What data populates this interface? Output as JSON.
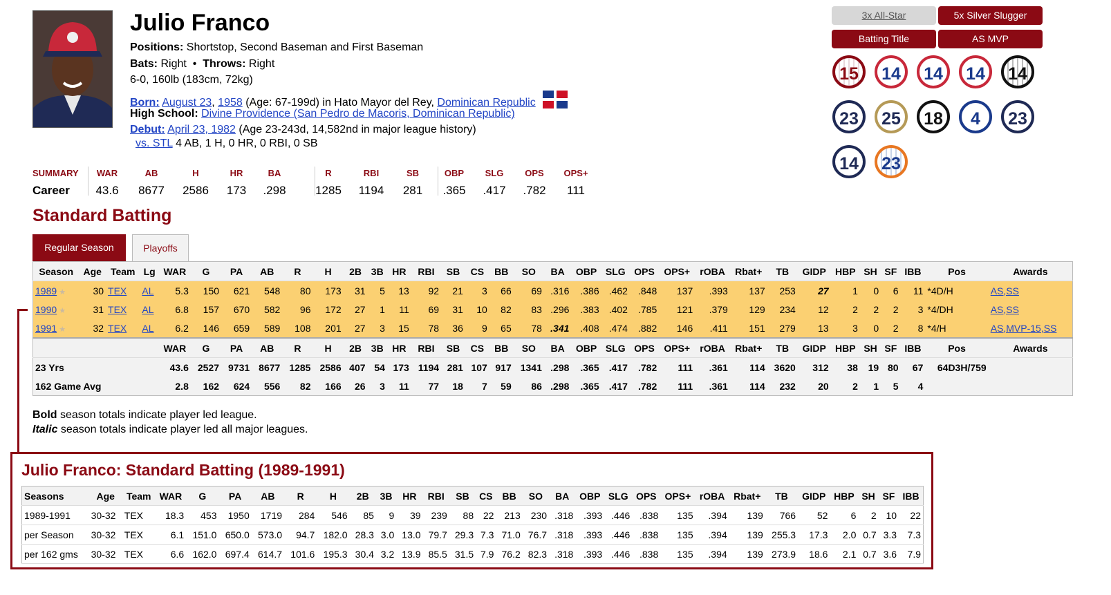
{
  "player": {
    "name": "Julio Franco",
    "positions_label": "Positions:",
    "positions": "Shortstop, Second Baseman and First Baseman",
    "bats_label": "Bats:",
    "bats": "Right",
    "throws_label": "Throws:",
    "throws": "Right",
    "size": "6-0, 160lb (183cm, 72kg)",
    "born_label": "Born:",
    "born_date": "August 23",
    "born_year": "1958",
    "born_age": "(Age: 67-199d) in Hato Mayor del Rey,",
    "born_country": "Dominican Republic",
    "hs_label": "High School:",
    "hs": "Divine Providence (San Pedro de Macoris, Dominican Republic)",
    "debut_label": "Debut:",
    "debut_date": "April 23, 1982",
    "debut_age": "(Age 23-243d, 14,582nd in major league history)",
    "debut_vs": "vs. STL",
    "debut_line": "4 AB, 1 H, 0 HR, 0 RBI, 0 SB"
  },
  "summary": {
    "label": "SUMMARY",
    "row_label": "Career",
    "cols": [
      {
        "h": "WAR",
        "v": "43.6"
      },
      {
        "h": "AB",
        "v": "8677"
      },
      {
        "h": "H",
        "v": "2586"
      },
      {
        "h": "HR",
        "v": "173"
      },
      {
        "h": "BA",
        "v": ".298"
      },
      {
        "h": "R",
        "v": "1285"
      },
      {
        "h": "RBI",
        "v": "1194"
      },
      {
        "h": "SB",
        "v": "281"
      },
      {
        "h": "OBP",
        "v": ".365"
      },
      {
        "h": "SLG",
        "v": ".417"
      },
      {
        "h": "OPS",
        "v": ".782"
      },
      {
        "h": "OPS+",
        "v": "111"
      }
    ]
  },
  "awards": [
    "3x All-Star",
    "5x Silver Slugger",
    "Batting Title",
    "AS MVP"
  ],
  "uniform_numbers": [
    "15",
    "14",
    "14",
    "14",
    "14",
    "23",
    "25",
    "18",
    "4",
    "23",
    "14",
    "23"
  ],
  "section_title": "Standard Batting",
  "tabs": [
    "Regular Season",
    "Playoffs"
  ],
  "batting": {
    "headers": [
      "Season",
      "Age",
      "Team",
      "Lg",
      "WAR",
      "G",
      "PA",
      "AB",
      "R",
      "H",
      "2B",
      "3B",
      "HR",
      "RBI",
      "SB",
      "CS",
      "BB",
      "SO",
      "BA",
      "OBP",
      "SLG",
      "OPS",
      "OPS+",
      "rOBA",
      "Rbat+",
      "TB",
      "GIDP",
      "HBP",
      "SH",
      "SF",
      "IBB",
      "Pos",
      "Awards"
    ],
    "rows": [
      {
        "season": "1989",
        "age": "30",
        "team": "TEX",
        "lg": "AL",
        "stats": [
          "5.3",
          "150",
          "621",
          "548",
          "80",
          "173",
          "31",
          "5",
          "13",
          "92",
          "21",
          "3",
          "66",
          "69",
          ".316",
          ".386",
          ".462",
          ".848",
          "137",
          ".393",
          "137",
          "253",
          "27",
          "1",
          "0",
          "6",
          "11"
        ],
        "pos": "*4D/H",
        "awards": "AS,SS"
      },
      {
        "season": "1990",
        "age": "31",
        "team": "TEX",
        "lg": "AL",
        "stats": [
          "6.8",
          "157",
          "670",
          "582",
          "96",
          "172",
          "27",
          "1",
          "11",
          "69",
          "31",
          "10",
          "82",
          "83",
          ".296",
          ".383",
          ".402",
          ".785",
          "121",
          ".379",
          "129",
          "234",
          "12",
          "2",
          "2",
          "2",
          "3"
        ],
        "pos": "*4/DH",
        "awards": "AS,SS"
      },
      {
        "season": "1991",
        "age": "32",
        "team": "TEX",
        "lg": "AL",
        "stats": [
          "6.2",
          "146",
          "659",
          "589",
          "108",
          "201",
          "27",
          "3",
          "15",
          "78",
          "36",
          "9",
          "65",
          "78",
          ".341",
          ".408",
          ".474",
          ".882",
          "146",
          ".411",
          "151",
          "279",
          "13",
          "3",
          "0",
          "2",
          "8"
        ],
        "pos": "*4/H",
        "awards": "AS,MVP-15,SS"
      }
    ],
    "foot_headers": [
      "WAR",
      "G",
      "PA",
      "AB",
      "R",
      "H",
      "2B",
      "3B",
      "HR",
      "RBI",
      "SB",
      "CS",
      "BB",
      "SO",
      "BA",
      "OBP",
      "SLG",
      "OPS",
      "OPS+",
      "rOBA",
      "Rbat+",
      "TB",
      "GIDP",
      "HBP",
      "SH",
      "SF",
      "IBB",
      "Pos",
      "Awards"
    ],
    "totals": [
      {
        "label": "23 Yrs",
        "stats": [
          "43.6",
          "2527",
          "9731",
          "8677",
          "1285",
          "2586",
          "407",
          "54",
          "173",
          "1194",
          "281",
          "107",
          "917",
          "1341",
          ".298",
          ".365",
          ".417",
          ".782",
          "111",
          ".361",
          "114",
          "3620",
          "312",
          "38",
          "19",
          "80",
          "67"
        ],
        "pos": "64D3H/759"
      },
      {
        "label": "162 Game Avg",
        "stats": [
          "2.8",
          "162",
          "624",
          "556",
          "82",
          "166",
          "26",
          "3",
          "11",
          "77",
          "18",
          "7",
          "59",
          "86",
          ".298",
          ".365",
          ".417",
          ".782",
          "111",
          ".361",
          "114",
          "232",
          "20",
          "2",
          "1",
          "5",
          "4"
        ],
        "pos": ""
      }
    ]
  },
  "notes": {
    "bold_word": "Bold",
    "bold_rest": " season totals indicate player led league.",
    "italic_word": "Italic",
    "italic_rest": " season totals indicate player led all major leagues."
  },
  "popup": {
    "title": "Julio Franco: Standard Batting (1989-1991)",
    "headers": [
      "Seasons",
      "Age",
      "Team",
      "WAR",
      "G",
      "PA",
      "AB",
      "R",
      "H",
      "2B",
      "3B",
      "HR",
      "RBI",
      "SB",
      "CS",
      "BB",
      "SO",
      "BA",
      "OBP",
      "SLG",
      "OPS",
      "OPS+",
      "rOBA",
      "Rbat+",
      "TB",
      "GIDP",
      "HBP",
      "SH",
      "SF",
      "IBB"
    ],
    "rows": [
      [
        "1989-1991",
        "30-32",
        "TEX",
        "18.3",
        "453",
        "1950",
        "1719",
        "284",
        "546",
        "85",
        "9",
        "39",
        "239",
        "88",
        "22",
        "213",
        "230",
        ".318",
        ".393",
        ".446",
        ".838",
        "135",
        ".394",
        "139",
        "766",
        "52",
        "6",
        "2",
        "10",
        "22"
      ],
      [
        "per Season",
        "30-32",
        "TEX",
        "6.1",
        "151.0",
        "650.0",
        "573.0",
        "94.7",
        "182.0",
        "28.3",
        "3.0",
        "13.0",
        "79.7",
        "29.3",
        "7.3",
        "71.0",
        "76.7",
        ".318",
        ".393",
        ".446",
        ".838",
        "135",
        ".394",
        "139",
        "255.3",
        "17.3",
        "2.0",
        "0.7",
        "3.3",
        "7.3"
      ],
      [
        "per 162 gms",
        "30-32",
        "TEX",
        "6.6",
        "162.0",
        "697.4",
        "614.7",
        "101.6",
        "195.3",
        "30.4",
        "3.2",
        "13.9",
        "85.5",
        "31.5",
        "7.9",
        "76.2",
        "82.3",
        ".318",
        ".393",
        ".446",
        ".838",
        "135",
        ".394",
        "139",
        "273.9",
        "18.6",
        "2.1",
        "0.7",
        "3.6",
        "7.9"
      ]
    ]
  },
  "colors": {
    "accent": "#8b0a14",
    "highlight": "#fbd072",
    "link": "#2245c5"
  }
}
